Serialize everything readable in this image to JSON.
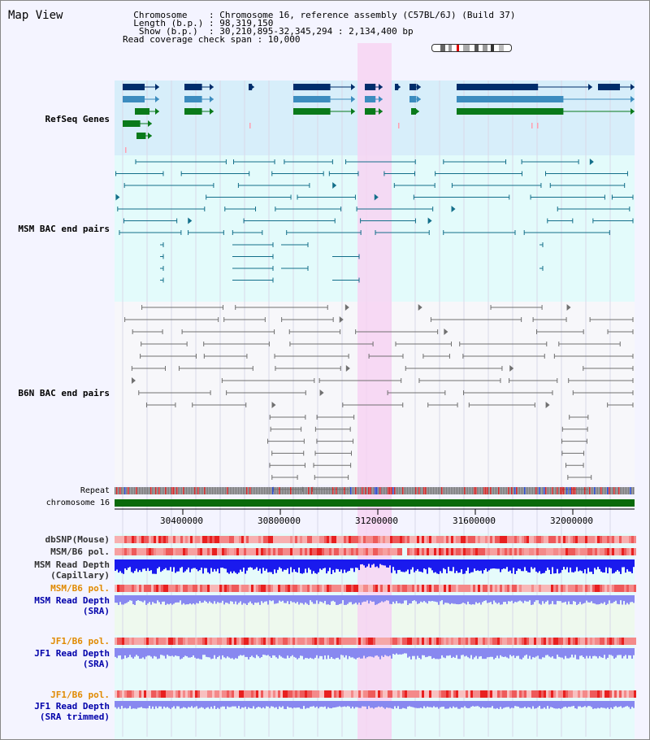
{
  "header": {
    "title": "Map View",
    "info_lines": [
      "  Chromosome    : Chromosome 16, reference assembly (C57BL/6J) (Build 37)",
      "  Length (b.p.) : 98,319,150",
      "   Show (b.p.)  : 30,210,895-32,345,294 : 2,134,400 bp",
      "Read coverage check span : 10,000"
    ]
  },
  "tracks": {
    "refseq": {
      "label": "RefSeq Genes",
      "color": "#0000aa"
    },
    "msm_bac": {
      "label": "MSM BAC end pairs",
      "color": "#006688"
    },
    "b6n_bac": {
      "label": "B6N BAC end pairs",
      "color": "#444444"
    },
    "repeat": {
      "label": "Repeat"
    },
    "chromosome": {
      "label": "chromosome 16"
    },
    "dbsnp": {
      "label": "dbSNP(Mouse)"
    },
    "msm_b6_pol_1": {
      "label": "MSM/B6 pol."
    },
    "msm_depth_cap": {
      "label": "MSM Read Depth\n(Capillary)"
    },
    "msm_b6_pol_2": {
      "label": "MSM/B6 pol.",
      "color": "#e08a00"
    },
    "msm_depth_sra": {
      "label": "MSM Read Depth\n(SRA)",
      "color": "#0000aa"
    },
    "jf1_b6_pol_1": {
      "label": "JF1/B6 pol.",
      "color": "#e08a00"
    },
    "jf1_depth_sra": {
      "label": "JF1 Read Depth\n(SRA)",
      "color": "#0000aa"
    },
    "jf1_b6_pol_2": {
      "label": "JF1/B6 pol.",
      "color": "#e08a00"
    },
    "jf1_depth_trim": {
      "label": "JF1 Read Depth\n(SRA trimmed)",
      "color": "#0000aa"
    }
  },
  "axis": {
    "ticks": [
      "30400000",
      "30800000",
      "31200000",
      "31600000",
      "32000000"
    ]
  },
  "colors": {
    "highlight": "#f7d4f2",
    "refseq_bg": "#d7eefa",
    "msm_bg": "#e3fbfb",
    "b6n_bg": "#f7f7fa",
    "gene_dark": "#002d6b",
    "gene_mid": "#3c8cbf",
    "gene_green": "#0a7a1a",
    "bac_teal": "#136f8a",
    "bac_gray": "#707070",
    "chrom_green": "#0a6a0a",
    "depth_blue": "#1a1aee",
    "depth_light": "#8888f0"
  }
}
